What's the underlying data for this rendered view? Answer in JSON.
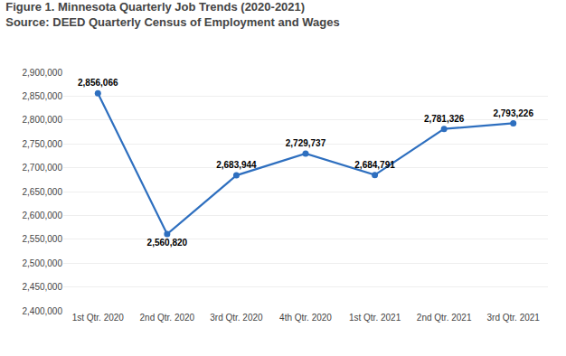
{
  "chart_data": {
    "type": "line",
    "title": "Figure 1. Minnesota Quarterly Job Trends (2020-2021)",
    "subtitle": "Source: DEED Quarterly Census of Employment and Wages",
    "categories": [
      "1st Qtr. 2020",
      "2nd Qtr. 2020",
      "3rd Qtr. 2020",
      "4th Qtr. 2020",
      "1st Qtr. 2021",
      "2nd Qtr. 2021",
      "3rd Qtr. 2021"
    ],
    "values": [
      2856066,
      2560820,
      2683944,
      2729737,
      2684791,
      2781326,
      2793226
    ],
    "value_labels": [
      "2,856,066",
      "2,560,820",
      "2,683,944",
      "2,729,737",
      "2,684,791",
      "2,781,326",
      "2,793,226"
    ],
    "data_labels": true,
    "color": "#2E6FBF",
    "marker": "circle",
    "ylim": [
      2400000,
      2900000
    ],
    "yticks": [
      {
        "value": 2400000,
        "label": "2,400,000"
      },
      {
        "value": 2450000,
        "label": "2,450,000"
      },
      {
        "value": 2500000,
        "label": "2,500,000"
      },
      {
        "value": 2550000,
        "label": "2,550,000"
      },
      {
        "value": 2600000,
        "label": "2,600,000"
      },
      {
        "value": 2650000,
        "label": "2,650,000"
      },
      {
        "value": 2700000,
        "label": "2,700,000"
      },
      {
        "value": 2750000,
        "label": "2,750,000"
      },
      {
        "value": 2800000,
        "label": "2,800,000"
      },
      {
        "value": 2850000,
        "label": "2,850,000"
      },
      {
        "value": 2900000,
        "label": "2,900,000"
      }
    ],
    "grid": true
  }
}
